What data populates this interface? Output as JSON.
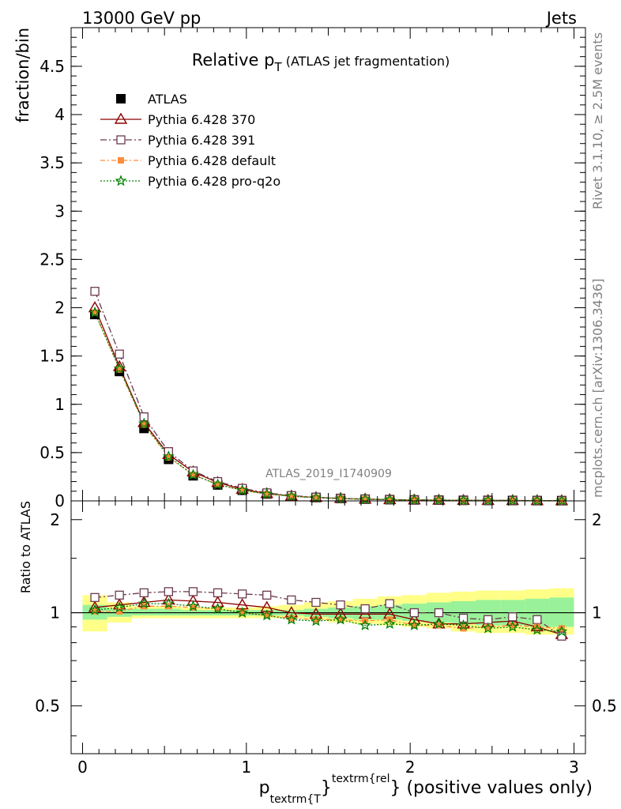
{
  "header": {
    "left": "13000 GeV pp",
    "right": "Jets"
  },
  "side_labels": {
    "rivet": "Rivet 3.1.10, ≥ 2.5M events",
    "mcplots": "mcplots.cern.ch [arXiv:1306.3436]"
  },
  "watermark": "ATLAS_2019_I1740909",
  "colors": {
    "atlas": "#000000",
    "p370": "#8b0000",
    "p391": "#6b3a4f",
    "pdef": "#ff8c3a",
    "pq2o": "#008000",
    "band_inner": "#99f299",
    "band_outer": "#ffff88"
  },
  "chart_data": [
    {
      "type": "line",
      "title_main": "Relative p",
      "title_sub": "T",
      "title_rest": " (ATLAS jet fragmentation)",
      "ylabel": "fraction/bin",
      "xlim": [
        -0.07,
        3.07
      ],
      "ylim": [
        0,
        4.9
      ],
      "yticks": [
        0,
        0.5,
        1,
        1.5,
        2,
        2.5,
        3,
        3.5,
        4,
        4.5
      ],
      "ytick_labels": [
        "0",
        "0.5",
        "1",
        "1.5",
        "2",
        "2.5",
        "3",
        "3.5",
        "4",
        "4.5"
      ],
      "x": [
        0.075,
        0.225,
        0.375,
        0.525,
        0.675,
        0.825,
        0.975,
        1.125,
        1.275,
        1.425,
        1.575,
        1.725,
        1.875,
        2.025,
        2.175,
        2.325,
        2.475,
        2.625,
        2.775,
        2.925
      ],
      "legend": [
        {
          "key": "atlas",
          "label": "ATLAS"
        },
        {
          "key": "p370",
          "label": "Pythia 6.428 370"
        },
        {
          "key": "p391",
          "label": "Pythia 6.428 391"
        },
        {
          "key": "pdef",
          "label": "Pythia 6.428 default"
        },
        {
          "key": "pq2o",
          "label": "Pythia 6.428 pro-q2o"
        }
      ],
      "series": [
        {
          "key": "atlas",
          "name": "ATLAS",
          "values": [
            1.93,
            1.34,
            0.75,
            0.43,
            0.26,
            0.165,
            0.11,
            0.072,
            0.05,
            0.035,
            0.025,
            0.018,
            0.013,
            0.01,
            0.008,
            0.006,
            0.005,
            0.004,
            0.003,
            0.0025
          ]
        },
        {
          "key": "p370",
          "name": "Pythia 6.428 370",
          "values": [
            2.0,
            1.39,
            0.81,
            0.48,
            0.3,
            0.19,
            0.12,
            0.075,
            0.05,
            0.035,
            0.025,
            0.018,
            0.013,
            0.0095,
            0.0073,
            0.0055,
            0.0045,
            0.0037,
            0.0027,
            0.0021
          ]
        },
        {
          "key": "p391",
          "name": "Pythia 6.428 391",
          "values": [
            2.17,
            1.52,
            0.87,
            0.51,
            0.31,
            0.2,
            0.13,
            0.083,
            0.055,
            0.038,
            0.026,
            0.019,
            0.014,
            0.01,
            0.008,
            0.0058,
            0.0047,
            0.0039,
            0.0028,
            0.0021
          ]
        },
        {
          "key": "pdef",
          "name": "Pythia 6.428 default",
          "values": [
            1.95,
            1.36,
            0.79,
            0.45,
            0.27,
            0.17,
            0.11,
            0.07,
            0.048,
            0.033,
            0.024,
            0.017,
            0.0125,
            0.0091,
            0.0072,
            0.0053,
            0.0045,
            0.0036,
            0.0027,
            0.0022
          ]
        },
        {
          "key": "pq2o",
          "name": "Pythia 6.428 pro-q2o",
          "values": [
            1.95,
            1.37,
            0.8,
            0.46,
            0.27,
            0.17,
            0.11,
            0.071,
            0.048,
            0.033,
            0.024,
            0.0165,
            0.012,
            0.0091,
            0.0074,
            0.0055,
            0.0044,
            0.0036,
            0.0026,
            0.0022
          ]
        }
      ]
    },
    {
      "type": "line",
      "ylabel": "Ratio to ATLAS",
      "xlabel_main": "p",
      "xlabel_sub": "textrm{T",
      "xlabel_brace": "}",
      "xlabel_sup": "textrm{rel",
      "xlabel_rest": "} (positive values only)",
      "xlim": [
        -0.07,
        3.07
      ],
      "ylim": [
        0.35,
        2.3
      ],
      "log_y": true,
      "xticks": [
        0,
        1,
        2,
        3
      ],
      "xtick_labels": [
        "0",
        "1",
        "2",
        "3"
      ],
      "yticks": [
        0.5,
        1,
        2
      ],
      "ytick_labels": [
        "0.5",
        "1",
        "2"
      ],
      "x_edges": [
        0,
        0.15,
        0.3,
        0.45,
        0.6,
        0.75,
        0.9,
        1.05,
        1.2,
        1.35,
        1.5,
        1.65,
        1.8,
        1.95,
        2.1,
        2.25,
        2.4,
        2.55,
        2.7,
        2.85,
        3.0
      ],
      "band_inner": {
        "lo": [
          0.95,
          0.97,
          0.98,
          0.98,
          0.98,
          0.98,
          0.98,
          0.98,
          0.98,
          0.97,
          0.96,
          0.95,
          0.95,
          0.94,
          0.93,
          0.92,
          0.91,
          0.91,
          0.9,
          0.9
        ],
        "hi": [
          1.06,
          1.03,
          1.03,
          1.03,
          1.02,
          1.02,
          1.02,
          1.02,
          1.02,
          1.03,
          1.04,
          1.05,
          1.06,
          1.07,
          1.08,
          1.09,
          1.1,
          1.1,
          1.11,
          1.12
        ]
      },
      "band_outer": {
        "lo": [
          0.87,
          0.93,
          0.96,
          0.96,
          0.96,
          0.96,
          0.96,
          0.96,
          0.96,
          0.95,
          0.93,
          0.92,
          0.91,
          0.9,
          0.89,
          0.87,
          0.86,
          0.86,
          0.85,
          0.85
        ],
        "hi": [
          1.14,
          1.08,
          1.05,
          1.05,
          1.04,
          1.04,
          1.04,
          1.05,
          1.06,
          1.08,
          1.09,
          1.11,
          1.13,
          1.14,
          1.16,
          1.17,
          1.18,
          1.18,
          1.19,
          1.2
        ]
      },
      "x": [
        0.075,
        0.225,
        0.375,
        0.525,
        0.675,
        0.825,
        0.975,
        1.125,
        1.275,
        1.425,
        1.575,
        1.725,
        1.875,
        2.025,
        2.175,
        2.325,
        2.475,
        2.625,
        2.775,
        2.925
      ],
      "series": [
        {
          "key": "p370",
          "values": [
            1.04,
            1.06,
            1.08,
            1.1,
            1.09,
            1.08,
            1.06,
            1.04,
            1.0,
            0.99,
            0.99,
            0.99,
            0.99,
            0.95,
            0.92,
            0.92,
            0.93,
            0.94,
            0.9,
            0.85
          ]
        },
        {
          "key": "p391",
          "values": [
            1.12,
            1.14,
            1.16,
            1.17,
            1.17,
            1.16,
            1.15,
            1.14,
            1.1,
            1.08,
            1.06,
            1.03,
            1.07,
            1.0,
            1.0,
            0.96,
            0.95,
            0.97,
            0.95,
            0.84
          ]
        },
        {
          "key": "pdef",
          "values": [
            1.01,
            1.01,
            1.05,
            1.05,
            1.04,
            1.03,
            1.0,
            0.98,
            0.96,
            0.95,
            0.95,
            0.94,
            0.95,
            0.91,
            0.91,
            0.89,
            0.9,
            0.91,
            0.9,
            0.89
          ]
        },
        {
          "key": "pq2o",
          "values": [
            1.02,
            1.04,
            1.07,
            1.07,
            1.05,
            1.03,
            1.0,
            0.98,
            0.95,
            0.94,
            0.95,
            0.91,
            0.92,
            0.91,
            0.92,
            0.91,
            0.89,
            0.9,
            0.88,
            0.87
          ]
        }
      ]
    }
  ]
}
